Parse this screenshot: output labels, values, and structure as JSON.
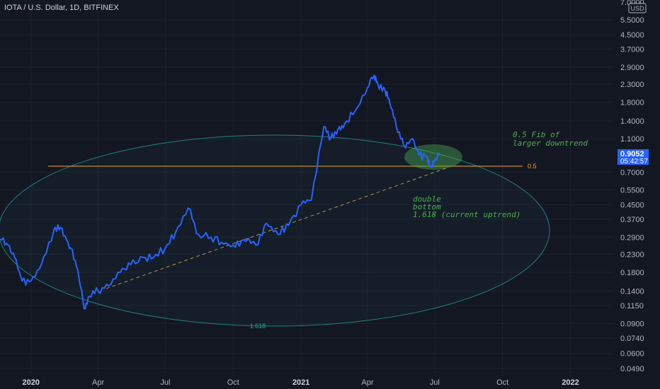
{
  "header": {
    "title": "IOTA / U.S. Dollar, 1D, BITFINEX"
  },
  "price_axis": {
    "currency_badge": "USD",
    "top_cut_label": "7.0000",
    "ticks": [
      "5.5000",
      "4.5000",
      "3.7000",
      "2.9000",
      "2.3000",
      "1.8000",
      "1.4000",
      "1.1000",
      "0.7000",
      "0.5500",
      "0.4500",
      "0.3700",
      "0.2900",
      "0.2300",
      "0.1800",
      "0.1400",
      "0.1150",
      "0.0900",
      "0.0740",
      "0.0600",
      "0.0490"
    ],
    "last_price": "0.9052",
    "countdown": "05:42:57"
  },
  "time_axis": {
    "ticks": [
      "2020",
      "Apr",
      "Jul",
      "Oct",
      "2021",
      "Apr",
      "Jul",
      "Oct",
      "2022"
    ]
  },
  "colors": {
    "background": "#131722",
    "grid": "#1e2230",
    "price_line": "#2962ff",
    "fib_level": "#f5a623",
    "ellipse": "#26a69a",
    "annotation": "#4caf50",
    "last_price_badge": "#2962ff"
  },
  "annotations": {
    "fib_level_label": "0.5",
    "ellipse_label": "1.618",
    "fib_note_line1": "0.5 Fib of",
    "fib_note_line2": "larger downtrend",
    "double_line1": "double",
    "double_line2": "bottom",
    "double_line3": "1.618 (current uptrend)"
  },
  "chart_data": {
    "type": "line",
    "title": "IOTA / U.S. Dollar, 1D, BITFINEX",
    "y_scale": "log",
    "grid": true,
    "series": [
      {
        "x": [
          "2019-11-20",
          "2019-12-01",
          "2019-12-10",
          "2019-12-20",
          "2020-01-01",
          "2020-01-15",
          "2020-02-01",
          "2020-02-10",
          "2020-02-20",
          "2020-03-01",
          "2020-03-10",
          "2020-03-13",
          "2020-03-20",
          "2020-04-01",
          "2020-04-15",
          "2020-05-01",
          "2020-05-15",
          "2020-06-01",
          "2020-06-15",
          "2020-07-01",
          "2020-07-15",
          "2020-08-01",
          "2020-08-15",
          "2020-09-01",
          "2020-09-15",
          "2020-10-01",
          "2020-10-15",
          "2020-11-01",
          "2020-11-15",
          "2020-12-01",
          "2020-12-15",
          "2021-01-01",
          "2021-01-15",
          "2021-02-01",
          "2021-02-10",
          "2021-02-20",
          "2021-03-01",
          "2021-03-15",
          "2021-04-01",
          "2021-04-10",
          "2021-04-15",
          "2021-04-25",
          "2021-05-01",
          "2021-05-10",
          "2021-05-20",
          "2021-06-01",
          "2021-06-10",
          "2021-06-20",
          "2021-06-25",
          "2021-07-01",
          "2021-07-08"
        ],
        "values": [
          0.28,
          0.26,
          0.22,
          0.16,
          0.16,
          0.2,
          0.32,
          0.33,
          0.27,
          0.21,
          0.14,
          0.11,
          0.13,
          0.14,
          0.15,
          0.18,
          0.2,
          0.22,
          0.22,
          0.25,
          0.31,
          0.43,
          0.3,
          0.29,
          0.27,
          0.26,
          0.28,
          0.26,
          0.35,
          0.3,
          0.34,
          0.45,
          0.48,
          1.3,
          1.1,
          1.25,
          1.35,
          1.6,
          2.2,
          2.6,
          2.3,
          2.1,
          1.8,
          1.3,
          1.0,
          1.1,
          0.88,
          0.86,
          0.75,
          0.82,
          0.9052
        ]
      }
    ],
    "fib_level": 0.76,
    "ylim": [
      0.0449,
      7.2
    ]
  }
}
